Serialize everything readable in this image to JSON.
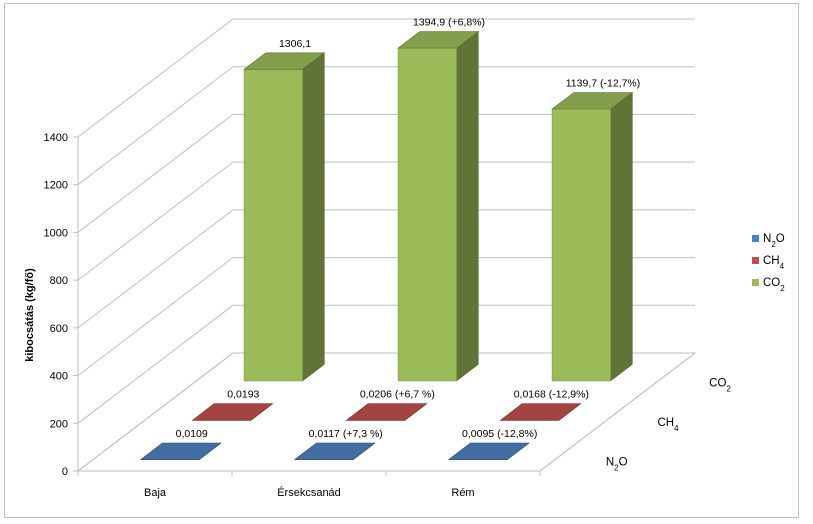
{
  "chart_data": {
    "type": "bar",
    "subtype": "3d-column",
    "ylabel": "kibocsátás (kg/fő)",
    "ylim": [
      0,
      1400
    ],
    "yticks": [
      0,
      200,
      400,
      600,
      800,
      1000,
      1200,
      1400
    ],
    "categories": [
      "Baja",
      "Érsekcsanád",
      "Rém"
    ],
    "grid": true,
    "legend_position": "right",
    "series": [
      {
        "name": "CO",
        "subscript": "2",
        "color": "#9bbb59",
        "values": [
          1306.1,
          1394.9,
          1139.7
        ],
        "labels": [
          "1306,1",
          "1394,9 (+6,8%)",
          "1139,7 (-12,7%)"
        ]
      },
      {
        "name": "CH",
        "subscript": "4",
        "color": "#c0504d",
        "values": [
          0.0193,
          0.0206,
          0.0168
        ],
        "labels": [
          "0,0193",
          "0,0206 (+6,7 %)",
          "0,0168 (-12,9%)"
        ]
      },
      {
        "name": "N",
        "subscript": "2",
        "suffix": "O",
        "color": "#4f81bd",
        "values": [
          0.0109,
          0.0117,
          0.0095
        ],
        "labels": [
          "0,0109",
          "0,0117 (+7,3 %)",
          "0,0095  (-12,8%)"
        ]
      }
    ]
  }
}
